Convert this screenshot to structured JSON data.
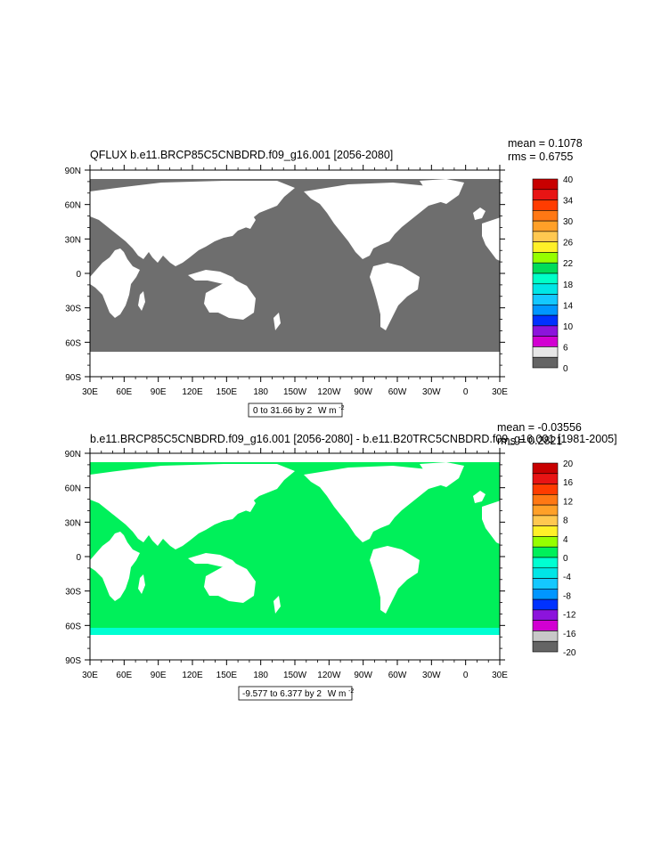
{
  "panels": [
    {
      "title": "QFLUX b.e11.BRCP85C5CNBDRD.f09_g16.001 [2056-2080]",
      "mean": "mean = 0.1078",
      "rms": "rms = 0.6755",
      "range_label": "0 to 31.66 by 2",
      "units": "W m",
      "units_sup": "-2",
      "ocean_color": "#6e6e6e",
      "land_color": "#ffffff",
      "coast_accent": "#d020e0",
      "colorbar_labels": [
        "40",
        "34",
        "30",
        "26",
        "22",
        "18",
        "14",
        "10",
        "6",
        "0"
      ],
      "colorbar_colors": [
        "#c80000",
        "#e81414",
        "#ff3c00",
        "#ff7814",
        "#ffa028",
        "#ffc850",
        "#fff028",
        "#96ff00",
        "#00dc5a",
        "#00ffc8",
        "#00e6e6",
        "#14c8ff",
        "#0096ff",
        "#0032ff",
        "#8c14dc",
        "#d200d2",
        "#e6e6e6",
        "#646464"
      ]
    },
    {
      "title": "b.e11.BRCP85C5CNBDRD.f09_g16.001 [2056-2080] - b.e11.B20TRC5CNBDRD.f09_g16.001 [1981-2005]",
      "mean": "mean = -0.03556",
      "rms": "rms = 0.2821",
      "range_label": "-9.577 to 6.377 by 2",
      "units": "W m",
      "units_sup": "-2",
      "ocean_color": "#00f05a",
      "land_color": "#ffffff",
      "ice_color": "#00ffd2",
      "colorbar_labels": [
        "20",
        "16",
        "12",
        "8",
        "4",
        "0",
        "-4",
        "-8",
        "-12",
        "-16",
        "-20"
      ],
      "colorbar_colors": [
        "#c80000",
        "#e81414",
        "#ff3c00",
        "#ff7814",
        "#ffa028",
        "#ffc850",
        "#fff028",
        "#96ff00",
        "#00f05a",
        "#00ffd2",
        "#00e6e6",
        "#14c8ff",
        "#0096ff",
        "#0032ff",
        "#8c14dc",
        "#d200d2",
        "#c8c8c8",
        "#646464"
      ]
    }
  ],
  "lat_labels": [
    "90N",
    "60N",
    "30N",
    "0",
    "30S",
    "60S",
    "90S"
  ],
  "lon_labels": [
    "30E",
    "60E",
    "90E",
    "120E",
    "150E",
    "180",
    "150W",
    "120W",
    "90W",
    "60W",
    "30W",
    "0",
    "30E"
  ]
}
